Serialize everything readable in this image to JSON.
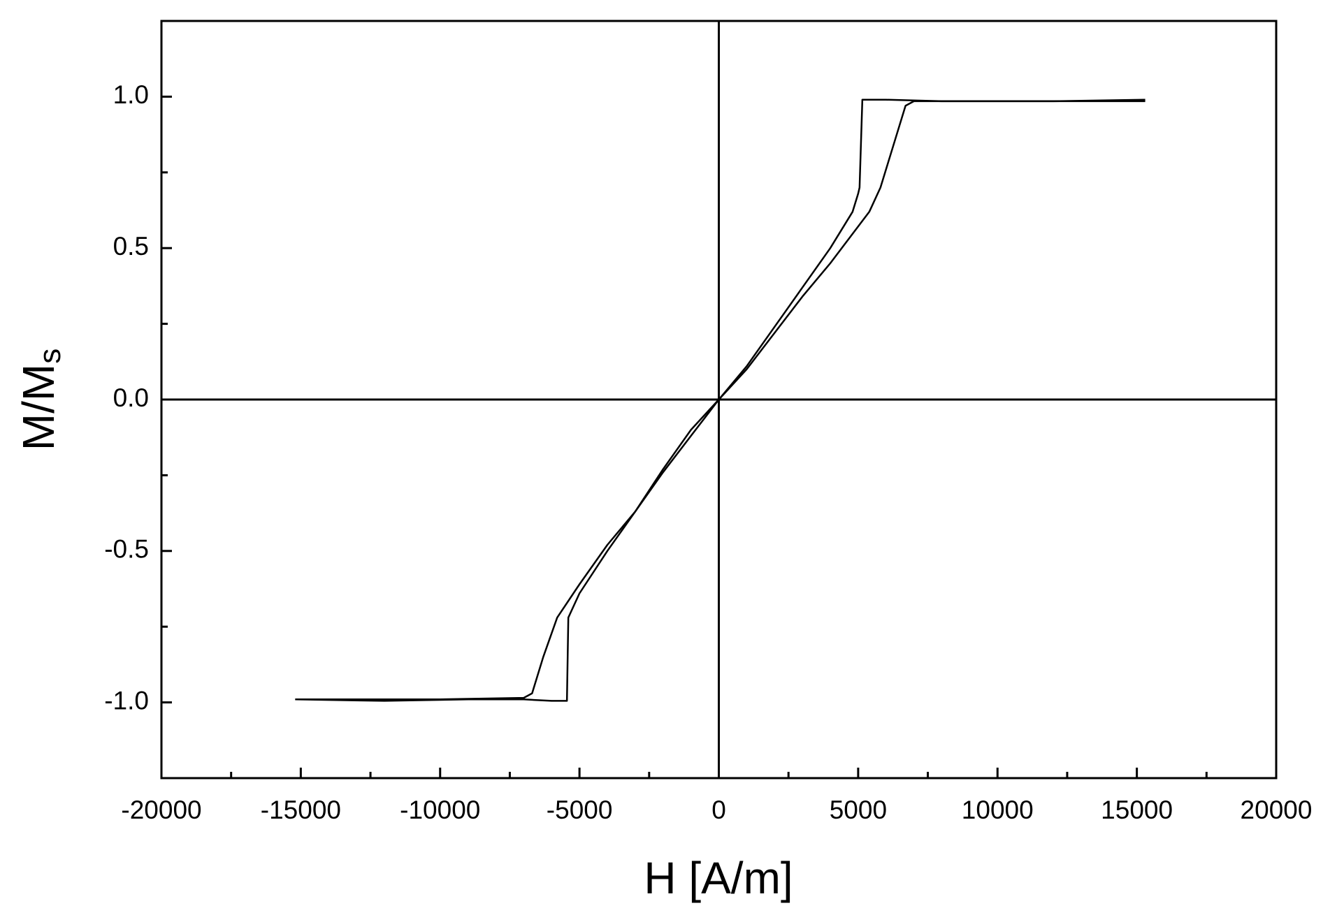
{
  "chart_data": {
    "type": "line",
    "xlabel": "H [A/m]",
    "ylabel": "M/M",
    "ylabel_subscript": "s",
    "xlim": [
      -20000,
      20000
    ],
    "ylim": [
      -1.25,
      1.25
    ],
    "xticks": [
      -20000,
      -15000,
      -10000,
      -5000,
      0,
      5000,
      10000,
      15000,
      20000
    ],
    "yticks": [
      {
        "value": -1,
        "label": "-1.0"
      },
      -0.5,
      {
        "value": 0,
        "label": "0.0"
      },
      0.5,
      {
        "value": 1,
        "label": "1.0"
      }
    ],
    "x_minor_ticks": [
      -17500,
      -12500,
      -7500,
      -2500,
      2500,
      7500,
      12500,
      17500
    ],
    "y_minor_ticks": [
      -1.25,
      -0.75,
      -0.25,
      0.25,
      0.75,
      1.25
    ],
    "zero_lines": true,
    "series": [
      {
        "color": "#000000",
        "x": [
          -15200,
          -12000,
          -9000,
          -7000,
          -6000,
          -5450,
          -5400,
          -5300,
          -5000,
          -4000,
          -3000,
          -2000,
          -1000,
          0,
          1000,
          2000,
          3000,
          4000,
          4800,
          5000,
          5050,
          5150,
          6000,
          8000,
          10000,
          12000,
          15300
        ],
        "values": [
          -0.99,
          -0.995,
          -0.99,
          -0.99,
          -0.995,
          -0.995,
          -0.72,
          -0.7,
          -0.64,
          -0.5,
          -0.37,
          -0.24,
          -0.12,
          0.0,
          0.11,
          0.24,
          0.37,
          0.5,
          0.62,
          0.68,
          0.7,
          0.99,
          0.99,
          0.985,
          0.985,
          0.985,
          0.985
        ]
      },
      {
        "color": "#000000",
        "x": [
          15300,
          12000,
          9000,
          7000,
          6700,
          6300,
          5800,
          5400,
          4000,
          3000,
          2000,
          1000,
          0,
          -1000,
          -2000,
          -3000,
          -4000,
          -5000,
          -5800,
          -6300,
          -6700,
          -7000,
          -10000,
          -15200
        ],
        "values": [
          0.99,
          0.985,
          0.985,
          0.985,
          0.97,
          0.85,
          0.7,
          0.62,
          0.45,
          0.34,
          0.22,
          0.1,
          0.0,
          -0.1,
          -0.23,
          -0.37,
          -0.48,
          -0.61,
          -0.72,
          -0.85,
          -0.97,
          -0.985,
          -0.99,
          -0.99
        ]
      }
    ]
  }
}
